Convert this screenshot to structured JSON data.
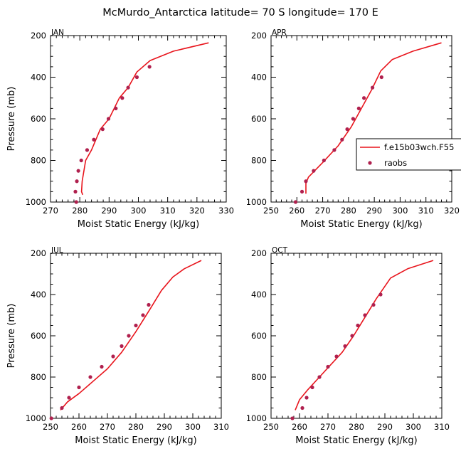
{
  "figure": {
    "title": "McMurdo_Antarctica  latitude= 70 S longitude= 170 E"
  },
  "colors": {
    "model": "#e8141c",
    "obs": "#b0204e",
    "axis": "#000000"
  },
  "legend": {
    "model_label": "f.e15b03wch.F55",
    "obs_label": "raobs",
    "placement": "right of APR panel"
  },
  "chart_data": [
    {
      "type": "line",
      "panel": "JAN",
      "title": "JAN",
      "xlabel": "Moist Static Energy (kJ/kg)",
      "ylabel": "Pressure (mb)",
      "xlim": [
        270,
        330
      ],
      "xticks": [
        270,
        280,
        290,
        300,
        310,
        320,
        330
      ],
      "ylim": [
        1000,
        200
      ],
      "yticks": [
        200,
        400,
        600,
        800,
        1000
      ],
      "series": [
        {
          "name": "f.e15b03wch.F55",
          "kind": "line",
          "x": [
            281.0,
            280.6,
            280.8,
            282.0,
            284.0,
            287.0,
            290.0,
            293.5,
            296.5,
            299.5,
            304.0,
            312.0,
            324.0
          ],
          "y": [
            965,
            950,
            900,
            800,
            750,
            650,
            600,
            500,
            450,
            375,
            320,
            275,
            235
          ]
        },
        {
          "name": "raobs",
          "kind": "scatter",
          "x": [
            278.8,
            278.5,
            279.0,
            279.5,
            280.5,
            282.5,
            284.8,
            287.8,
            289.8,
            292.3,
            294.5,
            296.5,
            299.5,
            303.8
          ],
          "y": [
            1000,
            950,
            900,
            850,
            800,
            750,
            700,
            650,
            600,
            550,
            500,
            450,
            400,
            350
          ]
        }
      ]
    },
    {
      "type": "line",
      "panel": "APR",
      "title": "APR",
      "xlabel": "Moist Static Energy (kJ/kg)",
      "ylabel": "",
      "xlim": [
        250,
        320
      ],
      "xticks": [
        250,
        260,
        270,
        280,
        290,
        300,
        310,
        320
      ],
      "ylim": [
        1000,
        200
      ],
      "yticks": [
        200,
        400,
        600,
        800,
        1000
      ],
      "series": [
        {
          "name": "f.e15b03wch.F55",
          "kind": "line",
          "x": [
            263.5,
            263.5,
            264.5,
            270.0,
            276.0,
            281.0,
            285.0,
            289.0,
            292.5,
            297.0,
            305.0,
            316.0
          ],
          "y": [
            960,
            910,
            880,
            810,
            730,
            640,
            550,
            460,
            370,
            315,
            275,
            235
          ]
        },
        {
          "name": "raobs",
          "kind": "scatter",
          "x": [
            259.5,
            262.0,
            263.5,
            266.5,
            270.5,
            274.5,
            277.5,
            279.5,
            281.8,
            284.0,
            286.0,
            289.3,
            292.8
          ],
          "y": [
            1000,
            950,
            900,
            850,
            800,
            750,
            700,
            650,
            600,
            550,
            500,
            450,
            400
          ]
        }
      ]
    },
    {
      "type": "line",
      "panel": "JUL",
      "title": "JUL",
      "xlabel": "Moist Static Energy (kJ/kg)",
      "ylabel": "Pressure (mb)",
      "xlim": [
        250,
        310
      ],
      "xticks": [
        250,
        260,
        270,
        280,
        290,
        300,
        310
      ],
      "ylim": [
        1000,
        200
      ],
      "yticks": [
        200,
        400,
        600,
        800,
        1000
      ],
      "series": [
        {
          "name": "f.e15b03wch.F55",
          "kind": "line",
          "x": [
            253.5,
            256.0,
            260.0,
            265.0,
            270.0,
            275.0,
            280.0,
            285.0,
            289.0,
            293.0,
            297.0,
            303.0
          ],
          "y": [
            960,
            920,
            880,
            820,
            760,
            680,
            580,
            470,
            380,
            315,
            275,
            235
          ]
        },
        {
          "name": "raobs",
          "kind": "scatter",
          "x": [
            250.3,
            254.0,
            256.5,
            260.0,
            264.0,
            268.0,
            272.0,
            275.0,
            277.5,
            280.0,
            282.5,
            284.5
          ],
          "y": [
            1000,
            950,
            900,
            850,
            800,
            750,
            700,
            650,
            600,
            550,
            500,
            450
          ]
        }
      ]
    },
    {
      "type": "line",
      "panel": "OCT",
      "title": "OCT",
      "xlabel": "Moist Static Energy (kJ/kg)",
      "ylabel": "",
      "xlim": [
        250,
        310
      ],
      "xticks": [
        250,
        260,
        270,
        280,
        290,
        300,
        310
      ],
      "ylim": [
        1000,
        200
      ],
      "yticks": [
        200,
        400,
        600,
        800,
        1000
      ],
      "series": [
        {
          "name": "f.e15b03wch.F55",
          "kind": "line",
          "x": [
            258.5,
            260.0,
            263.0,
            267.0,
            271.0,
            275.0,
            279.0,
            283.0,
            287.0,
            292.0,
            298.0,
            307.0
          ],
          "y": [
            960,
            910,
            860,
            800,
            740,
            680,
            600,
            510,
            420,
            320,
            275,
            235
          ]
        },
        {
          "name": "raobs",
          "kind": "scatter",
          "x": [
            257.5,
            261.0,
            262.5,
            264.5,
            267.0,
            270.0,
            273.0,
            276.0,
            278.5,
            280.5,
            283.0,
            286.0,
            288.5
          ],
          "y": [
            1000,
            950,
            900,
            850,
            800,
            750,
            700,
            650,
            600,
            550,
            500,
            450,
            400
          ]
        }
      ]
    }
  ]
}
